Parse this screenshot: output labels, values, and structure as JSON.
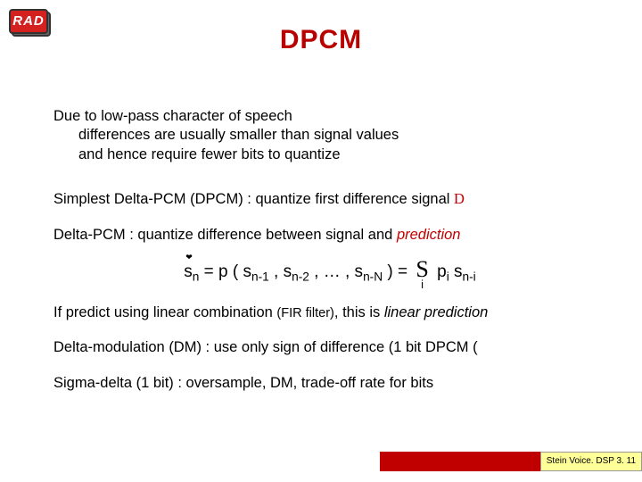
{
  "logo": {
    "text": "RAD"
  },
  "title": "DPCM",
  "intro": {
    "line1": "Due to low-pass character of speech",
    "line2": "differences are usually smaller than signal values",
    "line3": "and hence require fewer bits to quantize"
  },
  "p1": {
    "a": "Simplest Delta-PCM (DPCM) : quantize first difference signal ",
    "delta": "D"
  },
  "p2": {
    "a": "Delta-PCM : quantize difference between signal and ",
    "b": "prediction"
  },
  "eq": {
    "s": "s",
    "n": "n",
    "eq1": " = p ( s",
    "n1": "n-1",
    "c1": " , s",
    "n2": "n-2",
    "c2": " , … , s",
    "nN": "n-N",
    "c3": " ) = ",
    "sigma": "S",
    "sigma_sub": "i",
    "p": " p",
    "isub": "i",
    "sp": "  s",
    "ni": "n-i"
  },
  "p3": {
    "a": "If predict using linear combination ",
    "b": "(FIR filter)",
    "c": ", this is ",
    "d": "linear prediction"
  },
  "p4": "Delta-modulation (DM) :  use only sign of difference (1 bit DPCM (",
  "p5": "Sigma-delta (1 bit) :  oversample, DM, trade-off rate for bits",
  "footer": {
    "label": "Stein Voice. DSP 3. 11"
  },
  "colors": {
    "title": "#b80000",
    "accent": "#c00000",
    "footer_bg": "#ffff99"
  }
}
